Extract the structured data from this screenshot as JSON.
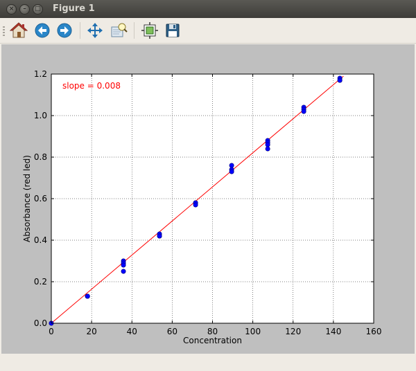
{
  "window": {
    "title": "Figure 1"
  },
  "toolbar": {
    "buttons": [
      {
        "icon": "home-icon",
        "tooltip": "Home"
      },
      {
        "icon": "back-icon",
        "tooltip": "Back"
      },
      {
        "icon": "forward-icon",
        "tooltip": "Forward"
      },
      {
        "icon": "pan-icon",
        "tooltip": "Pan"
      },
      {
        "icon": "zoom-icon",
        "tooltip": "Zoom"
      },
      {
        "icon": "subplots-icon",
        "tooltip": "Configure subplots"
      },
      {
        "icon": "save-icon",
        "tooltip": "Save"
      }
    ]
  },
  "chart_data": {
    "type": "scatter",
    "xlabel": "Concentration",
    "ylabel": "Absorbance (red led)",
    "xlim": [
      0,
      160
    ],
    "ylim": [
      0,
      1.2
    ],
    "xticks": [
      "0",
      "20",
      "40",
      "60",
      "80",
      "100",
      "120",
      "140",
      "160"
    ],
    "yticks": [
      "0.0",
      "0.2",
      "0.4",
      "0.6",
      "0.8",
      "1.0",
      "1.2"
    ],
    "grid": true,
    "annotation": "slope = 0.008",
    "colors": {
      "points": "#0000ff",
      "fit_line": "#ff0000",
      "annotation": "#ff0000"
    },
    "points": [
      [
        0,
        0.0
      ],
      [
        17.9,
        0.13
      ],
      [
        18.0,
        0.13
      ],
      [
        35.8,
        0.3
      ],
      [
        35.8,
        0.29
      ],
      [
        35.8,
        0.28
      ],
      [
        35.8,
        0.25
      ],
      [
        53.7,
        0.43
      ],
      [
        53.7,
        0.42
      ],
      [
        53.7,
        0.42
      ],
      [
        71.6,
        0.58
      ],
      [
        71.6,
        0.58
      ],
      [
        71.6,
        0.57
      ],
      [
        89.5,
        0.76
      ],
      [
        89.5,
        0.74
      ],
      [
        89.5,
        0.73
      ],
      [
        107.4,
        0.88
      ],
      [
        107.4,
        0.87
      ],
      [
        107.4,
        0.86
      ],
      [
        107.4,
        0.84
      ],
      [
        125.3,
        1.04
      ],
      [
        125.3,
        1.03
      ],
      [
        125.3,
        1.02
      ],
      [
        143.2,
        1.18
      ],
      [
        143.2,
        1.17
      ],
      [
        143.2,
        1.17
      ]
    ],
    "fit_line": {
      "x": [
        0,
        145
      ],
      "y": [
        0,
        1.19
      ]
    }
  }
}
